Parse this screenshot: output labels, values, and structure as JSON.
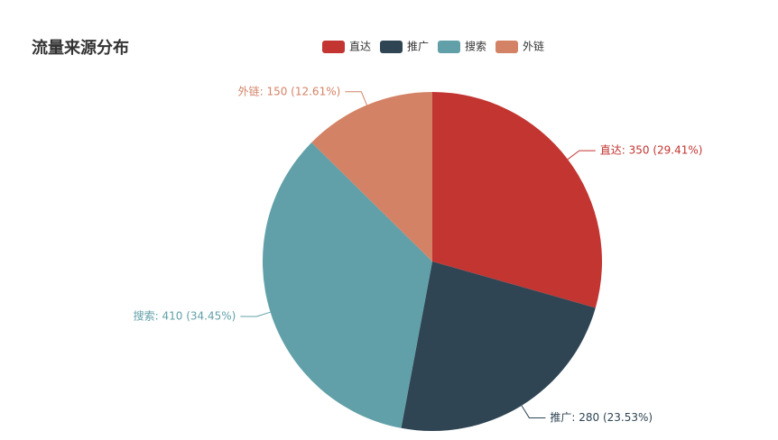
{
  "chart_data": {
    "type": "pie",
    "title": "流量来源分布",
    "categories": [
      "直达",
      "推广",
      "搜索",
      "外链"
    ],
    "values": [
      350,
      280,
      410,
      150
    ],
    "value_labels": [
      "直达: 350 (29.41%)",
      "推广: 280 (23.53%)",
      "搜索: 410 (34.45%)",
      "外链: 150 (12.61%)"
    ],
    "colors": [
      "#c23531",
      "#2f4554",
      "#61a0a8",
      "#d48265"
    ],
    "legend": "top"
  }
}
